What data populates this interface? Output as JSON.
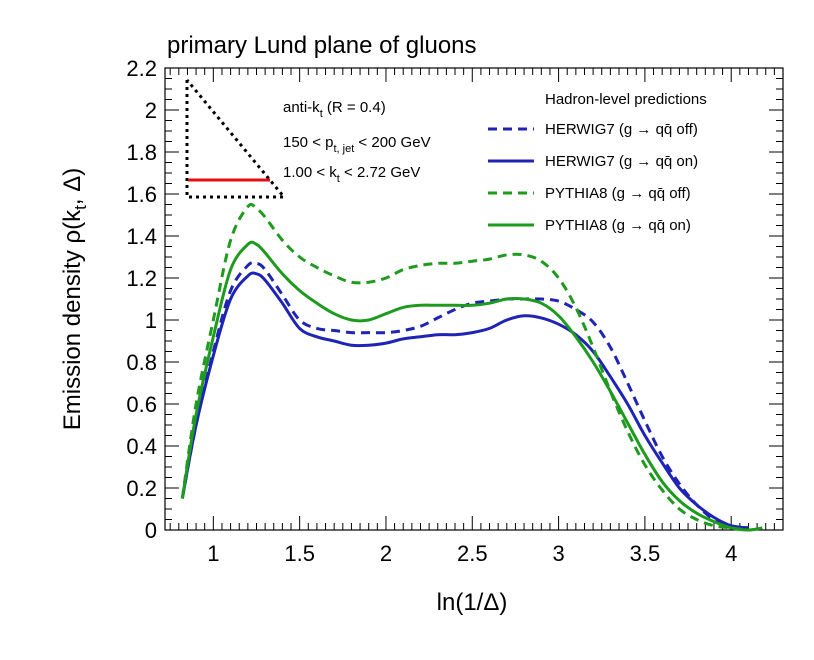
{
  "chart_data": {
    "type": "line",
    "title": "primary Lund plane of gluons",
    "xlabel": "ln(1/Δ)",
    "ylabel": "Emission density ρ(k_t, Δ)",
    "xlim": [
      0.72,
      4.3
    ],
    "ylim": [
      0,
      2.2
    ],
    "x_ticks": [
      "1",
      "1.5",
      "2",
      "2.5",
      "3",
      "3.5",
      "4"
    ],
    "y_ticks": [
      "0",
      "0.2",
      "0.4",
      "0.6",
      "0.8",
      "1",
      "1.2",
      "1.4",
      "1.6",
      "1.8",
      "2",
      "2.2"
    ],
    "annotations": {
      "algorithm": "anti-k_t (R = 0.4)",
      "pt_range": "150 < p_t, jet < 200 GeV",
      "kt_range": "1.00 < k_t < 2.72 GeV"
    },
    "legend": {
      "header": "Hadron-level predictions",
      "position": "top-right"
    },
    "series": [
      {
        "name": "HERWIG7 (g → qq̄ off)",
        "color": "#1f24b4",
        "style": "dashed",
        "x": [
          0.82,
          0.9,
          1.0,
          1.1,
          1.2,
          1.25,
          1.3,
          1.4,
          1.5,
          1.6,
          1.7,
          1.8,
          1.9,
          2.0,
          2.1,
          2.2,
          2.3,
          2.4,
          2.5,
          2.6,
          2.7,
          2.8,
          2.9,
          3.0,
          3.1,
          3.2,
          3.3,
          3.4,
          3.5,
          3.6,
          3.7,
          3.8,
          3.9,
          4.0,
          4.1
        ],
        "y": [
          0.15,
          0.5,
          0.85,
          1.14,
          1.26,
          1.27,
          1.24,
          1.12,
          1.0,
          0.96,
          0.95,
          0.94,
          0.94,
          0.94,
          0.95,
          0.97,
          1.01,
          1.05,
          1.08,
          1.09,
          1.1,
          1.1,
          1.1,
          1.09,
          1.05,
          0.99,
          0.87,
          0.7,
          0.52,
          0.35,
          0.22,
          0.12,
          0.05,
          0.02,
          0.01
        ]
      },
      {
        "name": "HERWIG7 (g → qq̄ on)",
        "color": "#1f24b4",
        "style": "solid",
        "x": [
          0.82,
          0.9,
          1.0,
          1.1,
          1.2,
          1.25,
          1.3,
          1.4,
          1.5,
          1.6,
          1.7,
          1.8,
          1.9,
          2.0,
          2.1,
          2.2,
          2.3,
          2.4,
          2.5,
          2.6,
          2.7,
          2.8,
          2.9,
          3.0,
          3.1,
          3.2,
          3.3,
          3.4,
          3.5,
          3.6,
          3.7,
          3.8,
          3.9,
          4.0,
          4.1
        ],
        "y": [
          0.15,
          0.5,
          0.83,
          1.1,
          1.21,
          1.22,
          1.19,
          1.08,
          0.96,
          0.92,
          0.9,
          0.88,
          0.88,
          0.89,
          0.91,
          0.92,
          0.93,
          0.93,
          0.94,
          0.96,
          1.0,
          1.02,
          1.01,
          0.98,
          0.93,
          0.85,
          0.73,
          0.6,
          0.45,
          0.32,
          0.2,
          0.12,
          0.06,
          0.02,
          0.01
        ]
      },
      {
        "name": "PYTHIA8 (g → qq̄ off)",
        "color": "#1e9a1e",
        "style": "dashed",
        "x": [
          0.82,
          0.9,
          1.0,
          1.1,
          1.2,
          1.25,
          1.3,
          1.4,
          1.5,
          1.6,
          1.7,
          1.8,
          1.9,
          2.0,
          2.1,
          2.2,
          2.3,
          2.4,
          2.5,
          2.6,
          2.7,
          2.8,
          2.9,
          3.0,
          3.1,
          3.2,
          3.3,
          3.4,
          3.5,
          3.6,
          3.7,
          3.8,
          3.9,
          4.0,
          4.1,
          4.18
        ],
        "y": [
          0.15,
          0.6,
          1.0,
          1.38,
          1.54,
          1.53,
          1.49,
          1.38,
          1.3,
          1.25,
          1.21,
          1.18,
          1.18,
          1.2,
          1.24,
          1.26,
          1.27,
          1.27,
          1.28,
          1.29,
          1.31,
          1.31,
          1.28,
          1.2,
          1.06,
          0.87,
          0.66,
          0.47,
          0.31,
          0.19,
          0.1,
          0.05,
          0.02,
          0.01,
          0.0,
          0.01
        ]
      },
      {
        "name": "PYTHIA8 (g → qq̄ on)",
        "color": "#1e9a1e",
        "style": "solid",
        "x": [
          0.82,
          0.9,
          1.0,
          1.1,
          1.2,
          1.25,
          1.3,
          1.4,
          1.5,
          1.6,
          1.7,
          1.8,
          1.9,
          2.0,
          2.1,
          2.2,
          2.3,
          2.4,
          2.5,
          2.6,
          2.7,
          2.8,
          2.9,
          3.0,
          3.1,
          3.2,
          3.3,
          3.4,
          3.5,
          3.6,
          3.7,
          3.8,
          3.9,
          4.0,
          4.1,
          4.18
        ],
        "y": [
          0.15,
          0.55,
          0.92,
          1.24,
          1.36,
          1.36,
          1.32,
          1.22,
          1.14,
          1.08,
          1.03,
          1.0,
          1.0,
          1.03,
          1.06,
          1.07,
          1.07,
          1.07,
          1.07,
          1.08,
          1.1,
          1.1,
          1.08,
          1.02,
          0.92,
          0.8,
          0.66,
          0.51,
          0.36,
          0.23,
          0.14,
          0.08,
          0.04,
          0.01,
          0.0,
          0.01
        ]
      }
    ]
  }
}
